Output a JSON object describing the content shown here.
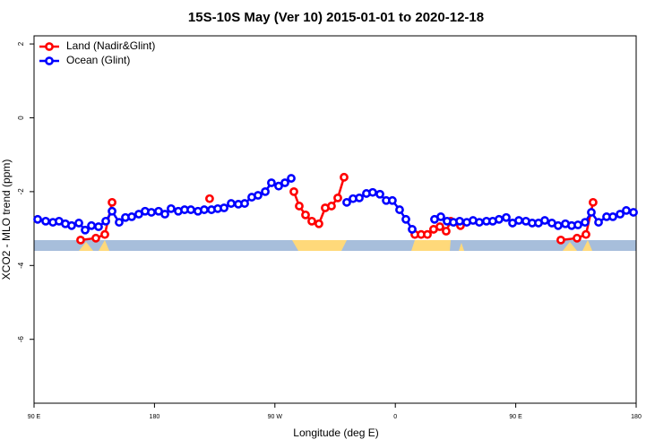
{
  "chart_data": {
    "type": "line",
    "title": "15S-10S May (Ver 10)   2015-01-01 to 2020-12-18",
    "x_label": "Longitude (deg E)",
    "y_label": "XCO2 - MLO trend (ppm)",
    "xlim": [
      90,
      540
    ],
    "xticks": [
      {
        "value": 90,
        "label": "90 E"
      },
      180,
      {
        "value": 270,
        "label": "90 W"
      },
      {
        "value": 360,
        "label": "0"
      },
      {
        "value": 450,
        "label": "90 E"
      },
      {
        "value": 540,
        "label": "180"
      }
    ],
    "ylim": [
      -7.73,
      2.22
    ],
    "yticks": [
      -6,
      -4,
      -2,
      0,
      2
    ],
    "legend": "top-left",
    "series": [
      {
        "name": "Land (Nadir&Glint)",
        "color": "#ff0000",
        "x": [
          124.8,
          136.2,
          142.9,
          148.3,
          null,
          221.2,
          null,
          284.2,
          288.2,
          292.9,
          297.6,
          302.9,
          307.6,
          312.3,
          317.0,
          321.7,
          null,
          374.6,
          379.3,
          384.0,
          388.6,
          393.3,
          398.0,
          401.4,
          null,
          408.7,
          null,
          483.7,
          495.8,
          502.5,
          507.8
        ],
        "values": [
          -3.31,
          -3.26,
          -3.16,
          -2.29,
          null,
          -2.19,
          null,
          -2.0,
          -2.39,
          -2.63,
          -2.8,
          -2.87,
          -2.44,
          -2.39,
          -2.17,
          -1.61,
          null,
          -3.16,
          -3.16,
          -3.16,
          -3.02,
          -2.95,
          -3.07,
          -2.8,
          null,
          -2.92,
          null,
          -3.31,
          -3.26,
          -3.16,
          -2.29
        ]
      },
      {
        "name": "Ocean (Glint)",
        "color": "#0000ff",
        "x": [
          92.7,
          98.7,
          104.1,
          108.7,
          113.4,
          118.1,
          123.5,
          128.2,
          132.9,
          138.2,
          143.6,
          148.3,
          153.6,
          158.3,
          163.0,
          168.3,
          173.0,
          177.7,
          183.1,
          187.8,
          192.4,
          197.8,
          202.5,
          207.2,
          212.5,
          217.2,
          222.6,
          227.3,
          232.0,
          237.3,
          242.7,
          247.4,
          252.7,
          257.4,
          262.8,
          267.4,
          272.8,
          277.5,
          282.2,
          null,
          323.7,
          328.4,
          333.1,
          338.4,
          343.1,
          348.5,
          353.2,
          357.8,
          363.2,
          367.9,
          372.6,
          null,
          389.3,
          394.0,
          398.7,
          403.4,
          408.1,
          413.4,
          418.1,
          422.8,
          428.1,
          432.8,
          437.5,
          442.9,
          447.6,
          452.3,
          457.6,
          462.3,
          467.0,
          471.7,
          477.0,
          481.7,
          487.1,
          491.8,
          496.5,
          501.8,
          506.5,
          511.9,
          517.9,
          522.6,
          528.0,
          532.6,
          538.0
        ],
        "values": [
          -2.75,
          -2.8,
          -2.83,
          -2.8,
          -2.87,
          -2.92,
          -2.85,
          -3.04,
          -2.92,
          -2.95,
          -2.8,
          -2.53,
          -2.83,
          -2.7,
          -2.68,
          -2.61,
          -2.53,
          -2.56,
          -2.53,
          -2.61,
          -2.46,
          -2.53,
          -2.49,
          -2.49,
          -2.53,
          -2.49,
          -2.49,
          -2.46,
          -2.44,
          -2.32,
          -2.34,
          -2.32,
          -2.15,
          -2.1,
          -2.0,
          -1.76,
          -1.85,
          -1.76,
          -1.64,
          null,
          -2.29,
          -2.19,
          -2.17,
          -2.05,
          -2.02,
          -2.07,
          -2.24,
          -2.24,
          -2.49,
          -2.75,
          -3.02,
          null,
          -2.75,
          -2.68,
          -2.8,
          -2.83,
          -2.8,
          -2.83,
          -2.78,
          -2.83,
          -2.8,
          -2.8,
          -2.75,
          -2.7,
          -2.85,
          -2.78,
          -2.8,
          -2.85,
          -2.85,
          -2.78,
          -2.85,
          -2.92,
          -2.87,
          -2.92,
          -2.9,
          -2.83,
          -2.56,
          -2.83,
          -2.68,
          -2.68,
          -2.61,
          -2.51,
          -2.56
        ]
      }
    ]
  }
}
